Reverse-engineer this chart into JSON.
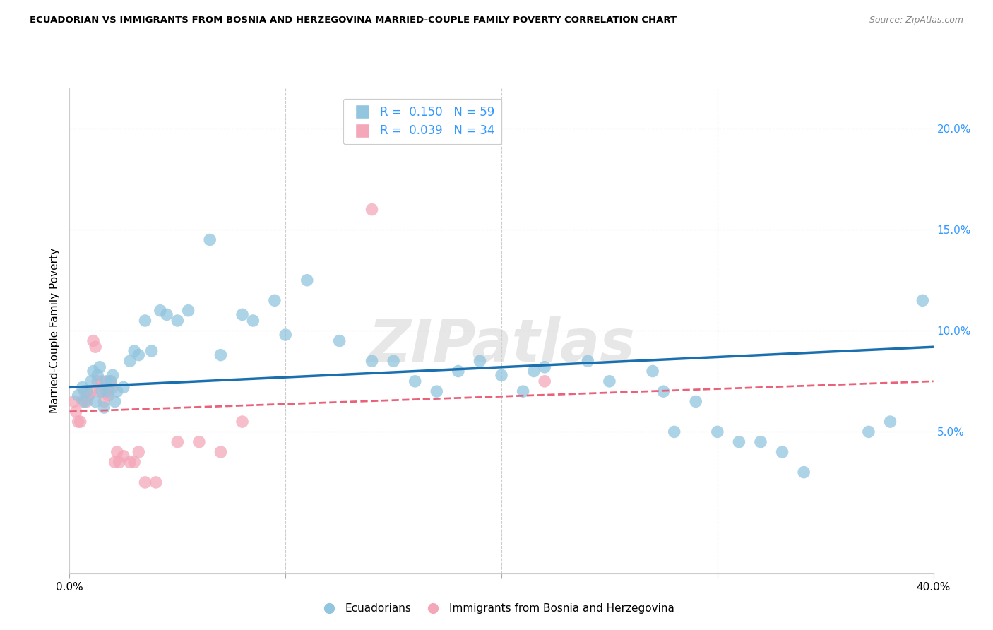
{
  "title": "ECUADORIAN VS IMMIGRANTS FROM BOSNIA AND HERZEGOVINA MARRIED-COUPLE FAMILY POVERTY CORRELATION CHART",
  "source": "Source: ZipAtlas.com",
  "ylabel": "Married-Couple Family Poverty",
  "x_min": 0.0,
  "x_max": 40.0,
  "y_min": -2.0,
  "y_max": 22.0,
  "watermark": "ZIPatlas",
  "legend_blue_R": "0.150",
  "legend_blue_N": "59",
  "legend_pink_R": "0.039",
  "legend_pink_N": "34",
  "legend_label_blue": "Ecuadorians",
  "legend_label_pink": "Immigrants from Bosnia and Herzegovina",
  "blue_color": "#92c5de",
  "pink_color": "#f4a7b9",
  "blue_line_color": "#1a6faf",
  "pink_line_color": "#e8637a",
  "blue_scatter_x": [
    0.4,
    0.6,
    0.7,
    0.8,
    1.0,
    1.1,
    1.2,
    1.3,
    1.4,
    1.5,
    1.6,
    1.7,
    1.8,
    1.9,
    2.0,
    2.1,
    2.2,
    2.5,
    2.8,
    3.0,
    3.2,
    3.5,
    3.8,
    4.2,
    4.5,
    5.0,
    5.5,
    6.5,
    7.0,
    8.0,
    8.5,
    9.5,
    10.0,
    11.0,
    12.5,
    14.0,
    15.0,
    16.0,
    17.0,
    18.0,
    19.0,
    20.0,
    21.0,
    21.5,
    22.0,
    24.0,
    25.0,
    27.0,
    27.5,
    28.0,
    29.0,
    30.0,
    31.0,
    32.0,
    33.0,
    34.0,
    37.0,
    38.0,
    39.5
  ],
  "blue_scatter_y": [
    6.8,
    7.2,
    6.5,
    7.0,
    7.5,
    8.0,
    6.5,
    7.8,
    8.2,
    7.0,
    6.2,
    7.5,
    7.0,
    7.5,
    7.8,
    6.5,
    7.0,
    7.2,
    8.5,
    9.0,
    8.8,
    10.5,
    9.0,
    11.0,
    10.8,
    10.5,
    11.0,
    14.5,
    8.8,
    10.8,
    10.5,
    11.5,
    9.8,
    12.5,
    9.5,
    8.5,
    8.5,
    7.5,
    7.0,
    8.0,
    8.5,
    7.8,
    7.0,
    8.0,
    8.2,
    8.5,
    7.5,
    8.0,
    7.0,
    5.0,
    6.5,
    5.0,
    4.5,
    4.5,
    4.0,
    3.0,
    5.0,
    5.5,
    11.5
  ],
  "pink_scatter_x": [
    0.2,
    0.3,
    0.4,
    0.5,
    0.6,
    0.7,
    0.8,
    0.9,
    1.0,
    1.1,
    1.2,
    1.3,
    1.4,
    1.5,
    1.6,
    1.7,
    1.8,
    1.9,
    2.0,
    2.1,
    2.2,
    2.3,
    2.5,
    2.8,
    3.0,
    3.2,
    3.5,
    4.0,
    5.0,
    6.0,
    7.0,
    8.0,
    14.0,
    22.0
  ],
  "pink_scatter_y": [
    6.5,
    6.0,
    5.5,
    5.5,
    6.5,
    7.0,
    6.5,
    6.8,
    7.0,
    9.5,
    9.2,
    7.5,
    7.0,
    7.5,
    6.5,
    7.0,
    6.8,
    7.5,
    7.2,
    3.5,
    4.0,
    3.5,
    3.8,
    3.5,
    3.5,
    4.0,
    2.5,
    2.5,
    4.5,
    4.5,
    4.0,
    5.5,
    16.0,
    7.5
  ],
  "blue_trendline_x": [
    0.0,
    40.0
  ],
  "blue_trendline_y": [
    7.2,
    9.2
  ],
  "pink_trendline_x": [
    0.0,
    40.0
  ],
  "pink_trendline_y": [
    6.0,
    7.5
  ]
}
